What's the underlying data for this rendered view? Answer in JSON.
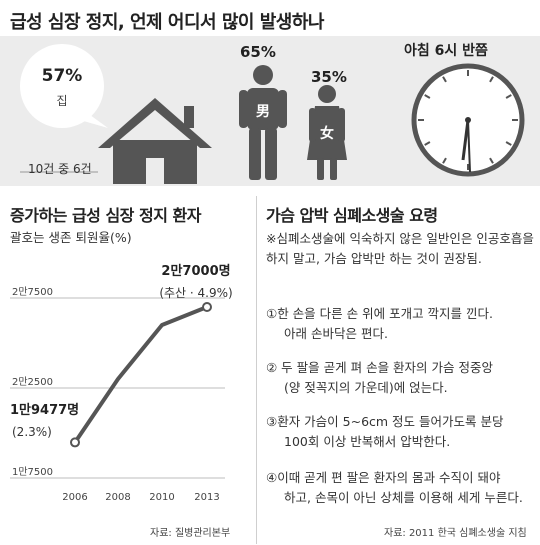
{
  "title": "급성 심장 정지, 언제 어디서 많이 발생하나",
  "location": {
    "percent": "57%",
    "label": "집",
    "count": "10건 중 6건"
  },
  "gender": {
    "male_percent": "65%",
    "male_symbol": "男",
    "female_percent": "35%",
    "female_symbol": "女"
  },
  "time": {
    "label": "아침 6시 반쯤"
  },
  "chart_section": {
    "title": "증가하는 급성 심장 정지 환자",
    "subtitle": "괄호는 생존 퇴원율(%)"
  },
  "chart_data": {
    "type": "line",
    "x": [
      2006,
      2008,
      2010,
      2013
    ],
    "values": [
      19477,
      23000,
      26000,
      27000
    ],
    "y_ticks": [
      "1만7500",
      "2만2500",
      "2만7500"
    ],
    "x_ticks": [
      "2006",
      "2008",
      "2010",
      "2013"
    ],
    "start_label": "1만9477명",
    "start_note": "(2.3%)",
    "end_label": "2만7000명",
    "end_note": "(추산 · 4.9%)",
    "color": "#555555"
  },
  "chart_source": "자료: 질병관리본부",
  "howto": {
    "title": "가슴 압박 심폐소생술 요령",
    "intro": "※심폐소생술에 익숙하지 않은 일반인은 인공호흡을 하지 말고, 가슴 압박만 하는 것이 권장됨.",
    "steps": [
      {
        "line1": "①한 손을 다른 손 위에 포개고 깍지를 낀다.",
        "line2": "아래 손바닥은 편다."
      },
      {
        "line1": "② 두 팔을 곧게 펴 손을 환자의 가슴 정중앙",
        "line2": "(양 젖꼭지의 가운데)에 얹는다."
      },
      {
        "line1": "③환자 가슴이 5~6cm 정도 들어가도록 분당",
        "line2": "100회 이상 반복해서 압박한다."
      },
      {
        "line1": "④이때 곧게 편 팔은 환자의 몸과 수직이 돼야",
        "line2": "하고, 손목이 아닌 상체를 이용해 세게 누른다."
      }
    ],
    "source": "자료: 2011 한국 심폐소생술 지침"
  }
}
